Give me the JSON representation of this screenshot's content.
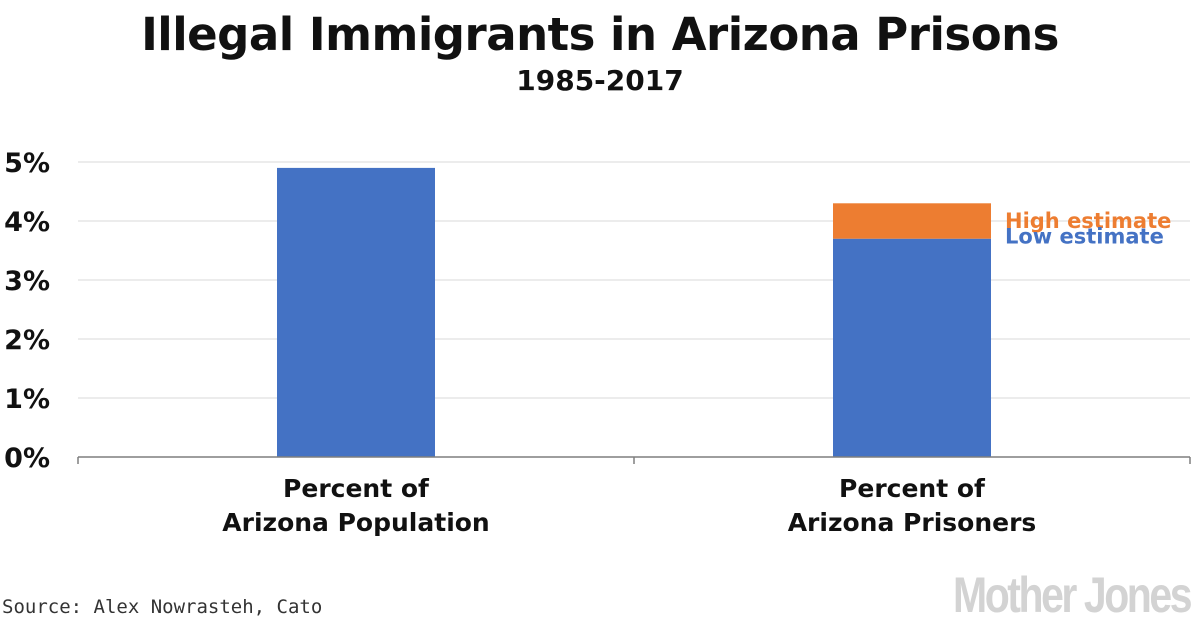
{
  "chart_data": {
    "type": "bar",
    "title": "Illegal Immigrants in Arizona Prisons",
    "subtitle": "1985-2017",
    "categories": [
      "Percent of\nArizona Population",
      "Percent of\nArizona Prisoners"
    ],
    "series": [
      {
        "name": "Low estimate",
        "color": "#4472c4",
        "values": [
          4.9,
          3.7
        ]
      },
      {
        "name": "High estimate",
        "color": "#ed7d31",
        "values": [
          0,
          0.6
        ]
      }
    ],
    "yticks": [
      "0%",
      "1%",
      "2%",
      "3%",
      "4%",
      "5%"
    ],
    "ylim": [
      0,
      5
    ],
    "grid": true,
    "legend_position": "right of second bar",
    "legend": {
      "high": "High estimate",
      "low": "Low estimate"
    }
  },
  "source": "Source: Alex Nowrasteh, Cato",
  "logo": "Mother Jones"
}
